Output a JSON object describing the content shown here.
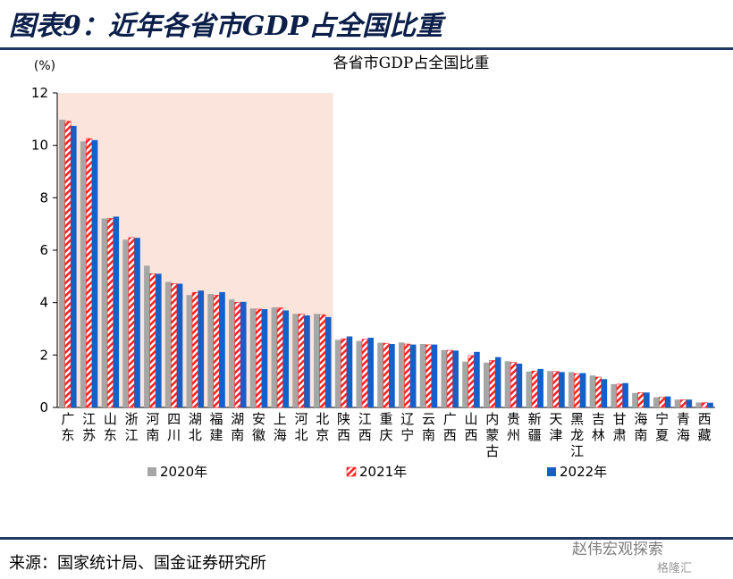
{
  "figure_title": "图表9：近年各省市GDP占全国比重",
  "source": "来源：国家统计局、国金证券研究所",
  "watermark": "赵伟宏观探索",
  "watermark2": "格隆汇",
  "colors": {
    "s2020": "#a6a6a6",
    "s2021": "#ff2020",
    "s2022": "#1560c8",
    "highlight": "#fbe4dc",
    "rule": "#1f3864"
  },
  "chart_data": {
    "type": "bar",
    "title": "各省市GDP占全国比重",
    "ylabel": "(%)",
    "ylim": [
      0,
      12
    ],
    "yticks": [
      0,
      2,
      4,
      6,
      8,
      10,
      12
    ],
    "highlight_first_n": 13,
    "legend_position": "bottom",
    "categories": [
      "广东",
      "江苏",
      "山东",
      "浙江",
      "河南",
      "四川",
      "湖北",
      "福建",
      "湖南",
      "安徽",
      "上海",
      "河北",
      "北京",
      "陕西",
      "江西",
      "重庆",
      "辽宁",
      "云南",
      "广西",
      "山西",
      "内蒙古",
      "贵州",
      "新疆",
      "天津",
      "黑龙江",
      "吉林",
      "甘肃",
      "海南",
      "宁夏",
      "青海",
      "西藏"
    ],
    "series": [
      {
        "name": "2020年",
        "values": [
          10.98,
          10.15,
          7.21,
          6.4,
          5.41,
          4.79,
          4.29,
          4.33,
          4.12,
          3.78,
          3.82,
          3.57,
          3.57,
          2.58,
          2.54,
          2.47,
          2.48,
          2.42,
          2.19,
          1.75,
          1.71,
          1.76,
          1.37,
          1.39,
          1.35,
          1.22,
          0.89,
          0.55,
          0.39,
          0.3,
          0.19
        ]
      },
      {
        "name": "2021年",
        "values": [
          10.92,
          10.26,
          7.21,
          6.48,
          5.1,
          4.73,
          4.39,
          4.28,
          4.01,
          3.75,
          3.8,
          3.56,
          3.54,
          2.62,
          2.6,
          2.45,
          2.42,
          2.39,
          2.18,
          1.98,
          1.79,
          1.72,
          1.39,
          1.37,
          1.29,
          1.16,
          0.89,
          0.57,
          0.39,
          0.29,
          0.18
        ]
      },
      {
        "name": "2022年",
        "values": [
          10.74,
          10.2,
          7.28,
          6.47,
          5.1,
          4.72,
          4.46,
          4.4,
          4.03,
          3.75,
          3.7,
          3.51,
          3.45,
          2.71,
          2.66,
          2.42,
          2.4,
          2.4,
          2.17,
          2.12,
          1.92,
          1.67,
          1.47,
          1.35,
          1.31,
          1.08,
          0.93,
          0.57,
          0.42,
          0.3,
          0.18
        ]
      }
    ]
  }
}
